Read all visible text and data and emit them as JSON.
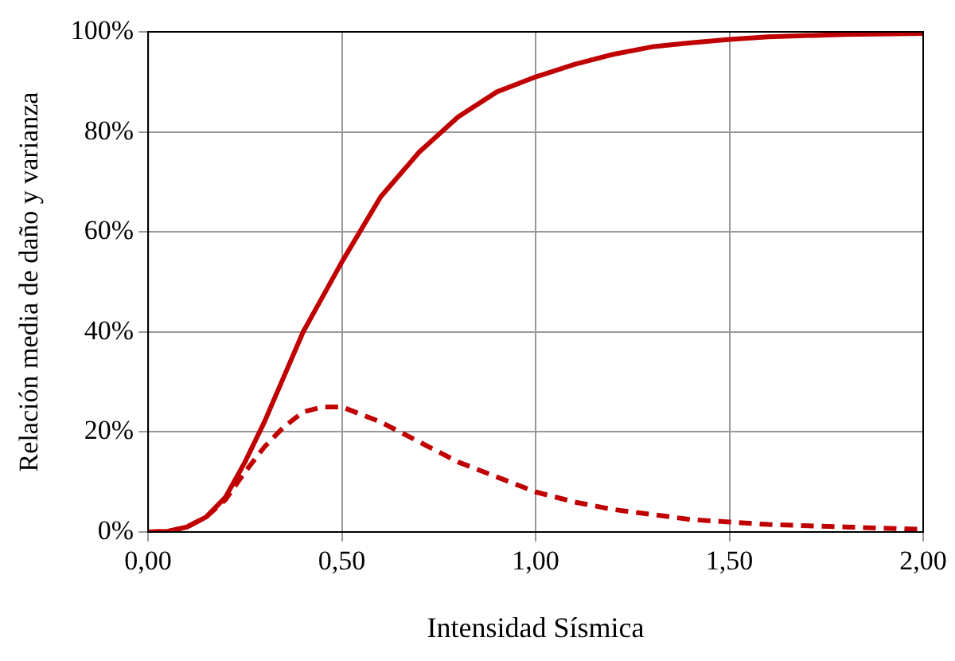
{
  "chart_data": {
    "type": "line",
    "xlabel": "Intensidad Sísmica",
    "ylabel": "Relación media de daño y varianza",
    "x": [
      0,
      0.05,
      0.1,
      0.15,
      0.2,
      0.25,
      0.3,
      0.35,
      0.4,
      0.45,
      0.5,
      0.6,
      0.7,
      0.8,
      0.9,
      1.0,
      1.1,
      1.2,
      1.3,
      1.4,
      1.5,
      1.6,
      1.8,
      2.0
    ],
    "series": [
      {
        "color": "#c00000",
        "line_style": "solid",
        "values": [
          0,
          0.001,
          0.01,
          0.03,
          0.07,
          0.14,
          0.22,
          0.31,
          0.4,
          0.47,
          0.54,
          0.67,
          0.76,
          0.83,
          0.88,
          0.91,
          0.935,
          0.955,
          0.97,
          0.978,
          0.985,
          0.99,
          0.995,
          0.997
        ]
      },
      {
        "color": "#c00000",
        "line_style": "dashed",
        "values": [
          0,
          0.001,
          0.01,
          0.03,
          0.065,
          0.12,
          0.17,
          0.21,
          0.24,
          0.25,
          0.25,
          0.22,
          0.18,
          0.14,
          0.11,
          0.08,
          0.06,
          0.045,
          0.035,
          0.025,
          0.02,
          0.015,
          0.01,
          0.005
        ]
      }
    ],
    "xlim": [
      0,
      2
    ],
    "xticks": [
      {
        "value": 0,
        "label": "0,00"
      },
      {
        "value": 0.5,
        "label": "0,50"
      },
      {
        "value": 1,
        "label": "1,00"
      },
      {
        "value": 1.5,
        "label": "1,50"
      },
      {
        "value": 2,
        "label": "2,00"
      }
    ],
    "ylim": [
      0,
      1
    ],
    "yticks": [
      {
        "value": 0,
        "label": "0%"
      },
      {
        "value": 0.2,
        "label": "20%"
      },
      {
        "value": 0.4,
        "label": "40%"
      },
      {
        "value": 0.6,
        "label": "60%"
      },
      {
        "value": 0.8,
        "label": "80%"
      },
      {
        "value": 1,
        "label": "100%"
      }
    ],
    "grid": true,
    "legend": false,
    "marker": "none"
  }
}
